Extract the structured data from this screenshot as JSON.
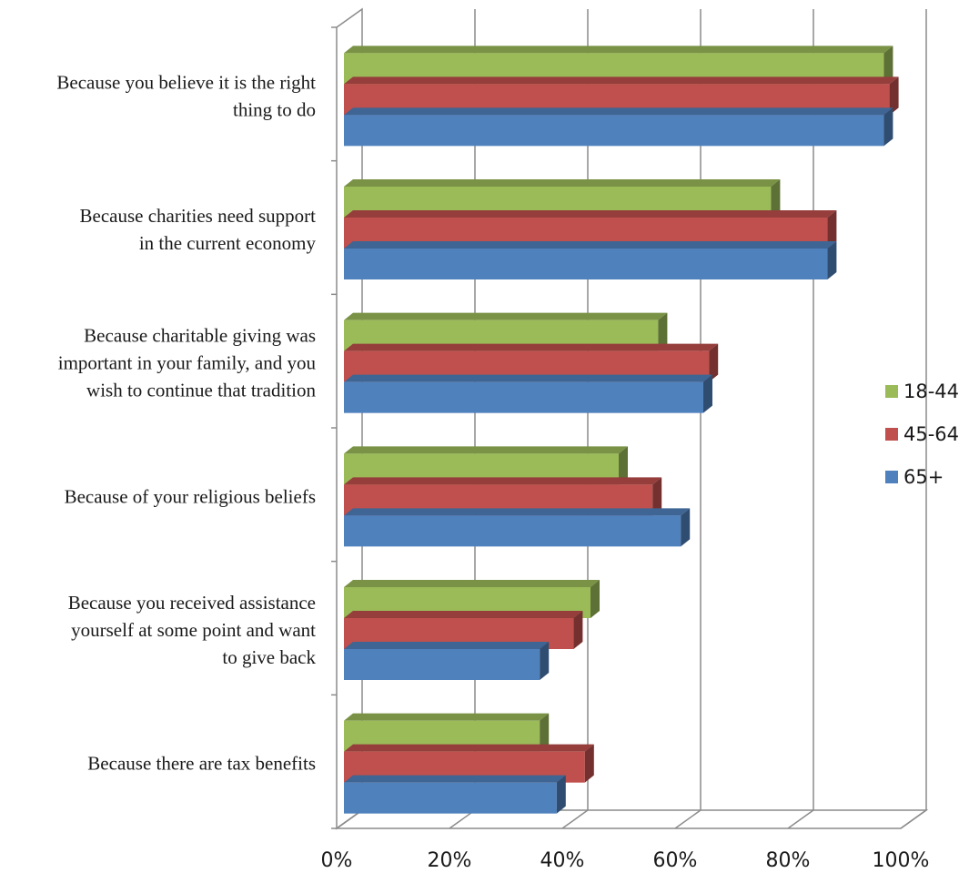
{
  "chart_data": {
    "type": "bar",
    "orientation": "horizontal",
    "style": "3d",
    "categories": [
      [
        "Because you believe it is the right",
        "thing to do"
      ],
      [
        "Because charities need support",
        "in the current economy"
      ],
      [
        "Because charitable giving was",
        "important in your family, and you",
        "wish to continue that tradition"
      ],
      [
        "Because of your religious beliefs"
      ],
      [
        "Because you received assistance",
        "yourself at some point and want",
        "to give back"
      ],
      [
        "Because there are tax benefits"
      ]
    ],
    "series": [
      {
        "name": "18-44",
        "color": "#9BBB59",
        "values": [
          97,
          77,
          57,
          50,
          45,
          36
        ]
      },
      {
        "name": "45-64",
        "color": "#C0504D",
        "values": [
          98,
          87,
          66,
          56,
          42,
          44
        ]
      },
      {
        "name": "65+",
        "color": "#4F81BD",
        "values": [
          97,
          87,
          65,
          61,
          36,
          39
        ]
      }
    ],
    "xlim": [
      0,
      100
    ],
    "x_ticks": [
      "0%",
      "20%",
      "40%",
      "60%",
      "80%",
      "100%"
    ],
    "grid": true,
    "legend_position": "right"
  }
}
